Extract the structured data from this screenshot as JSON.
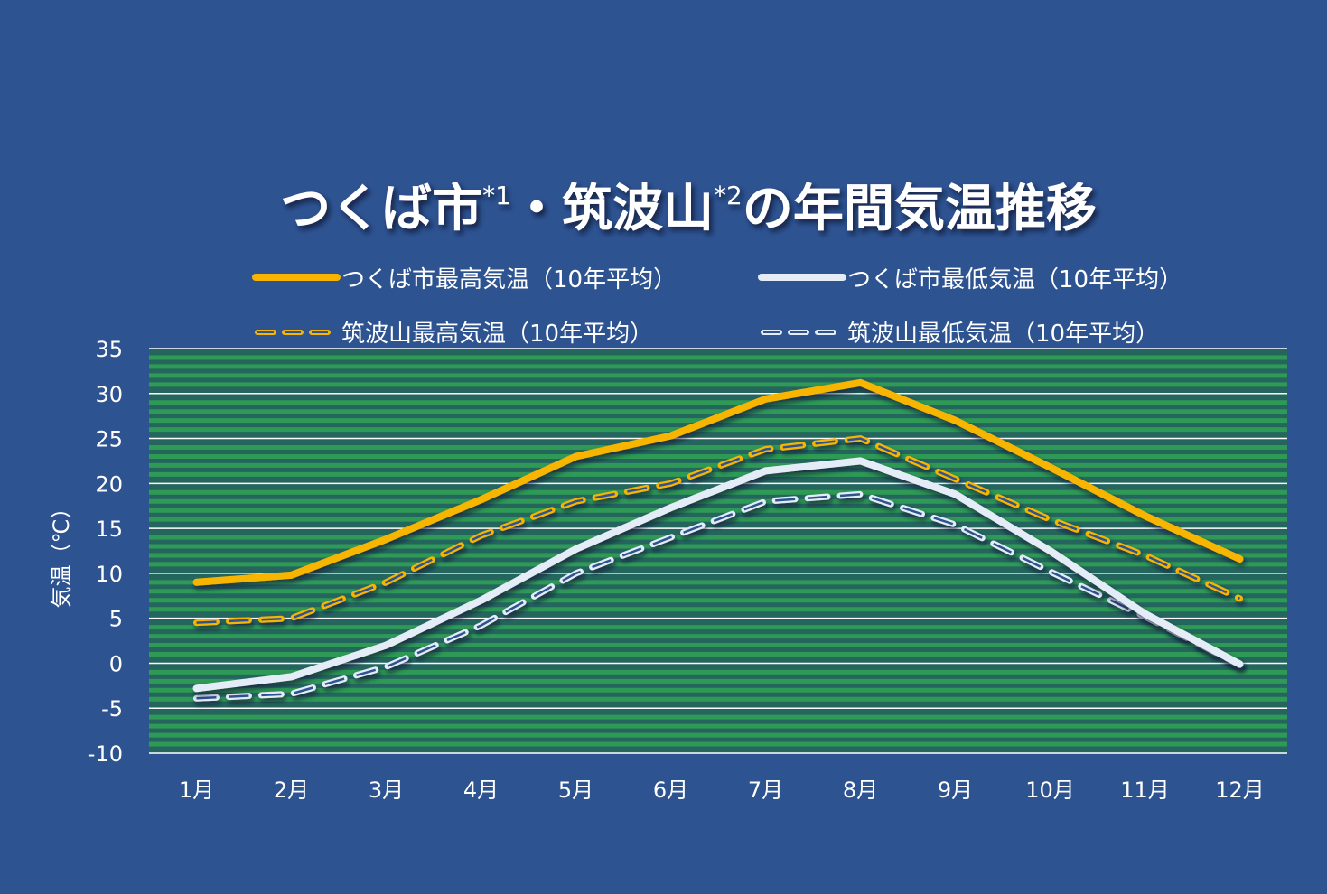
{
  "colors": {
    "background": "#2e5391",
    "plot_stripe": "#2b8a4a",
    "gridline": "#ffffff",
    "tsukuba_max": "#f7b500",
    "tsukuba_min": "#e4ecf7",
    "tsukubasan_max": "#f7b500",
    "tsukubasan_min": "#e4ecf7"
  },
  "chart_data": {
    "type": "line",
    "title": {
      "part1": "つくば市",
      "note1": "*1",
      "sep": "・",
      "part2": "筑波山",
      "note2": "*2",
      "part3": "の年間気温推移"
    },
    "xlabel": "",
    "ylabel": "気温（℃）",
    "categories": [
      "1月",
      "2月",
      "3月",
      "4月",
      "5月",
      "6月",
      "7月",
      "8月",
      "9月",
      "10月",
      "11月",
      "12月"
    ],
    "yticks": [
      "35",
      "30",
      "25",
      "20",
      "15",
      "10",
      "5",
      "0",
      "-5",
      "-10"
    ],
    "ylim": [
      -10,
      35
    ],
    "grid": true,
    "legend_position": "top",
    "series": [
      {
        "name": "つくば市最高気温（10年平均）",
        "style": "solid",
        "color": "#f7b500",
        "values": [
          9.0,
          9.8,
          13.8,
          18.2,
          23.0,
          25.3,
          29.4,
          31.2,
          27.0,
          21.8,
          16.4,
          11.6
        ]
      },
      {
        "name": "つくば市最低気温（10年平均）",
        "style": "solid",
        "color": "#e4ecf7",
        "values": [
          -2.8,
          -1.5,
          2.0,
          7.0,
          12.7,
          17.3,
          21.4,
          22.5,
          18.8,
          12.5,
          5.5,
          -0.1
        ]
      },
      {
        "name": "筑波山最高気温（10年平均）",
        "style": "dashed",
        "color": "#f7b500",
        "values": [
          4.5,
          5.0,
          9.0,
          14.2,
          18.0,
          20.0,
          23.8,
          25.0,
          20.5,
          16.0,
          12.0,
          7.2
        ]
      },
      {
        "name": "筑波山最低気温（10年平均）",
        "style": "dashed",
        "color": "#e4ecf7",
        "values": [
          -3.9,
          -3.4,
          -0.4,
          4.2,
          10.0,
          14.0,
          18.0,
          18.8,
          15.4,
          10.2,
          5.2,
          -0.2
        ]
      }
    ]
  }
}
